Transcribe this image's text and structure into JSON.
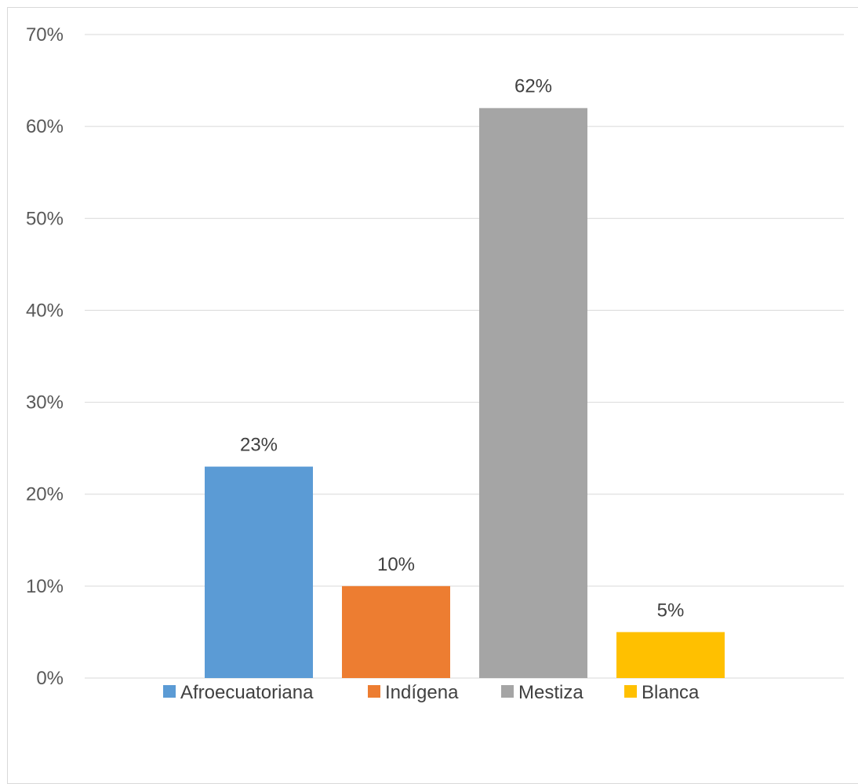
{
  "chart_data": {
    "type": "bar",
    "categories": [
      "Afroecuatoriana",
      "Indígena",
      "Mestiza",
      "Blanca"
    ],
    "values": [
      23,
      10,
      62,
      5
    ],
    "value_labels": [
      "23%",
      "10%",
      "62%",
      "5%"
    ],
    "colors": [
      "#5b9bd5",
      "#ed7d31",
      "#a5a5a5",
      "#ffc000"
    ],
    "ylim": [
      0,
      70
    ],
    "yticks": [
      0,
      10,
      20,
      30,
      40,
      50,
      60,
      70
    ],
    "ytick_labels": [
      "0%",
      "10%",
      "20%",
      "30%",
      "40%",
      "50%",
      "60%",
      "70%"
    ],
    "grid": true,
    "legend_position": "bottom",
    "title": "",
    "xlabel": "",
    "ylabel": ""
  }
}
